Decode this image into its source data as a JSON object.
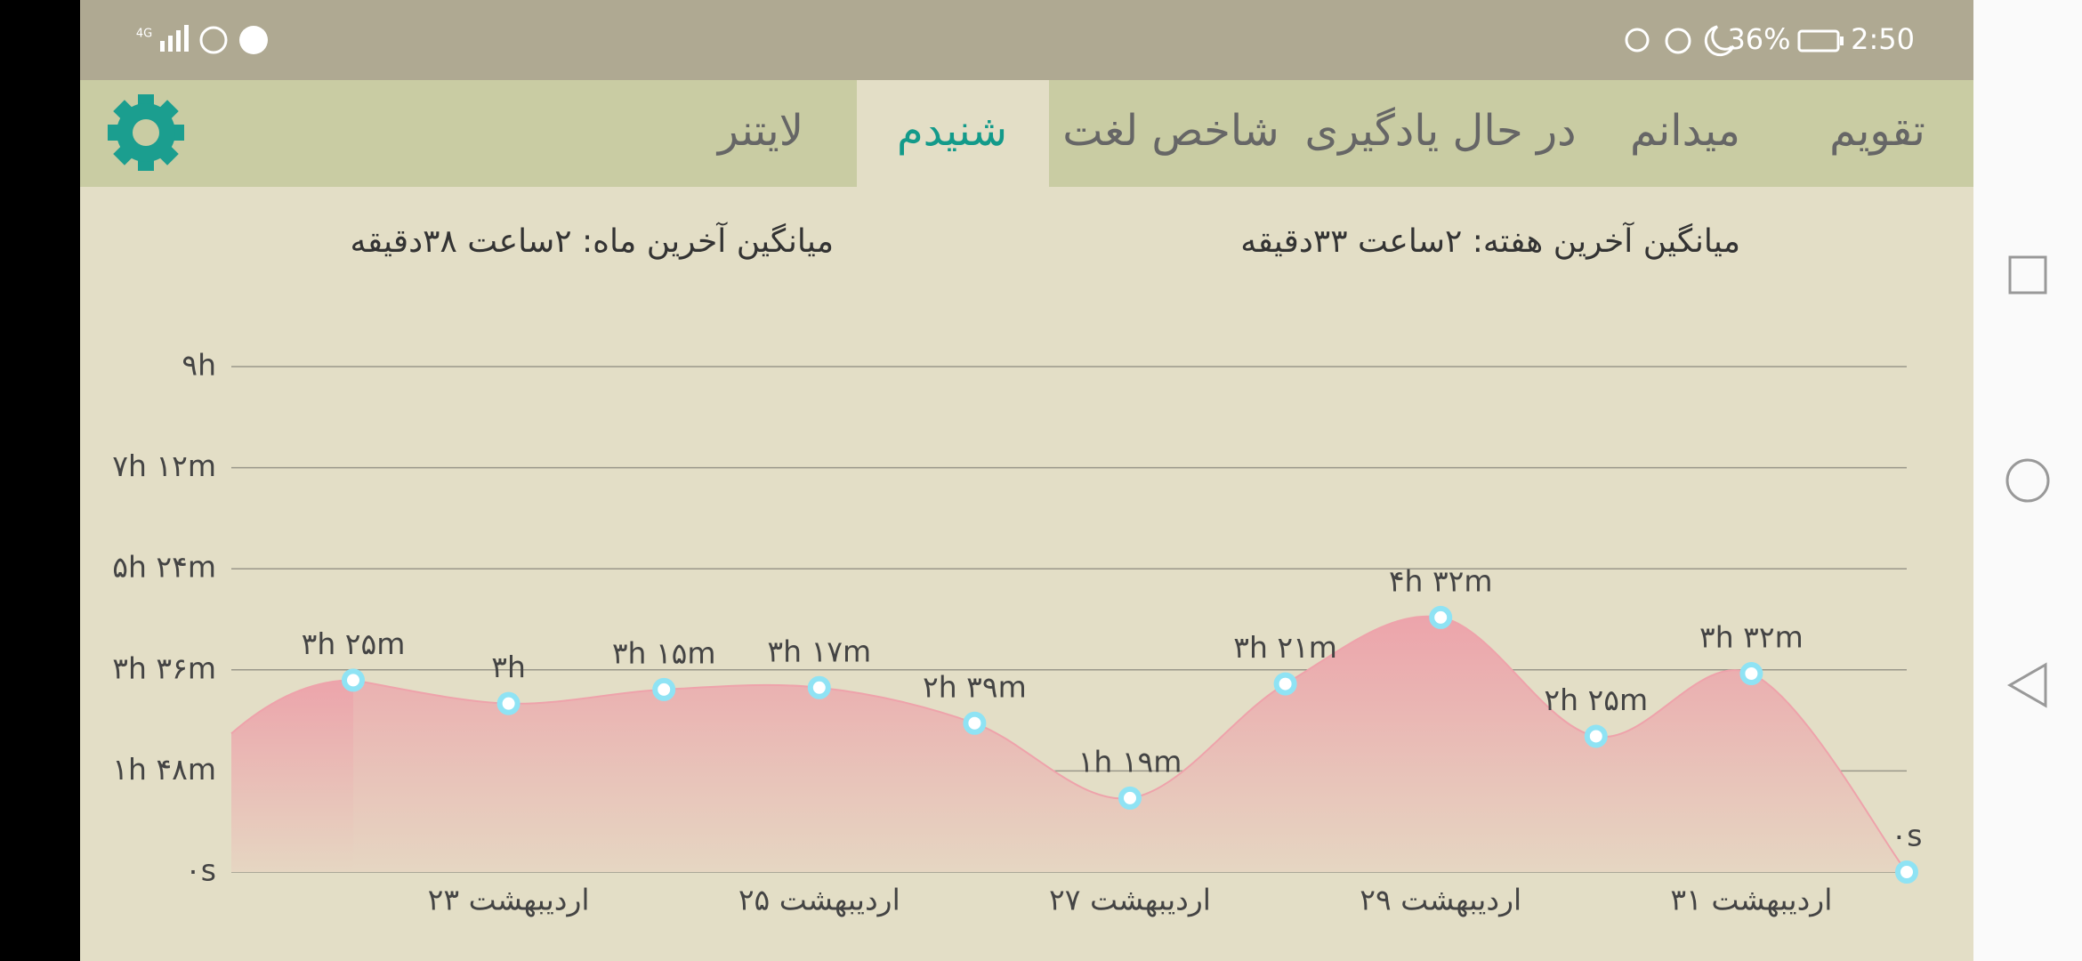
{
  "status_bar": {
    "battery": "36%",
    "time": "2:50"
  },
  "tabs": [
    "تقویم",
    "میدانم",
    "در حال یادگیری",
    "شاخص لغت",
    "شنیدم",
    "لایتنر"
  ],
  "active_tab": 4,
  "summary": {
    "week": "میانگین آخرین هفته: ۲ساعت  ۳۳دقیقه",
    "month": "میانگین آخرین ماه: ۲ساعت  ۳۸دقیقه"
  },
  "chart_data": {
    "type": "area",
    "categories": [
      null,
      "۲۳ اردیبهشت",
      null,
      "۲۵ اردیبهشت",
      null,
      "۲۷ اردیبهشت",
      null,
      "۲۹ اردیبهشت",
      null,
      "۳۱ اردیبهشت",
      null
    ],
    "values": [
      205,
      180,
      195,
      197,
      159,
      79,
      201,
      272,
      145,
      212,
      0
    ],
    "value_labels": [
      "۳h ۲۵m",
      "۳h",
      "۳h ۱۵m",
      "۳h ۱۷m",
      "۲h ۳۹m",
      "۱h ۱۹m",
      "۳h ۲۱m",
      "۴h ۳۲m",
      "۲h ۲۵m",
      "۳h ۳۲m",
      "۰s"
    ],
    "color": "#eea3ab",
    "ylim": [
      0,
      540
    ],
    "yticks": [
      {
        "value": 0,
        "label": "۰s"
      },
      {
        "value": 108,
        "label": "۱h ۴۸m"
      },
      {
        "value": 216,
        "label": "۳h ۳۶m"
      },
      {
        "value": 324,
        "label": "۵h ۲۴m"
      },
      {
        "value": 432,
        "label": "۷h ۱۲m"
      },
      {
        "value": 540,
        "label": "۹h"
      }
    ],
    "grid": true
  }
}
